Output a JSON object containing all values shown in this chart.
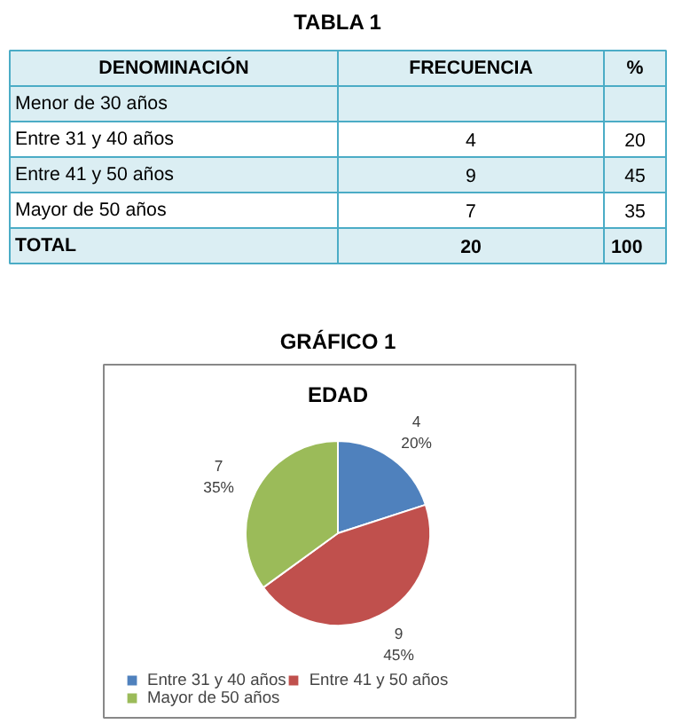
{
  "chart_data": {
    "type": "pie",
    "title": "EDAD",
    "categories": [
      "Entre 31 y 40 años",
      "Entre 41 y 50 años",
      "Mayor de 50 años"
    ],
    "values": [
      20,
      45,
      35
    ],
    "colors": [
      "#4f81bd",
      "#c0504d",
      "#9bbb59"
    ],
    "value_labels": [
      "4\n20%",
      "9\n45%",
      "7\n35%"
    ],
    "legend": "bottom",
    "annotations": [
      "TABLA 1",
      "DENOMINACIÓN",
      "FRECUENCIA",
      "%",
      "Menor de 30 años",
      null,
      null,
      "Entre 31 y 40 años",
      "4",
      "20",
      "Entre 41 y 50 años",
      "9",
      "45",
      "Mayor de 50 años",
      "7",
      "35",
      "TOTAL",
      "20",
      "100",
      "GRÁFICO 1"
    ]
  }
}
